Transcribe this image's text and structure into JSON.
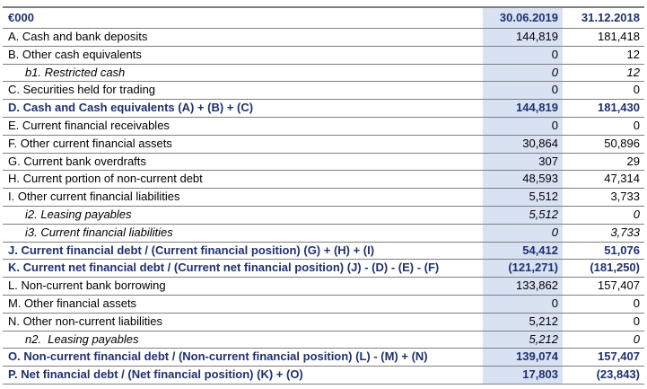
{
  "colors": {
    "header_text": "#1f3070",
    "highlight_column": "#d9e2f3",
    "grid_line": "#7f7f7f"
  },
  "table": {
    "unit_header": "€000",
    "columns": [
      "30.06.2019",
      "31.12.2018"
    ],
    "rows": [
      {
        "label": "A. Cash and bank deposits",
        "v1": "144,819",
        "v2": "181,418",
        "style": "normal"
      },
      {
        "label": "B. Other cash equivalents",
        "v1": "0",
        "v2": "12",
        "style": "normal"
      },
      {
        "label": "b1. Restricted cash",
        "v1": "0",
        "v2": "12",
        "style": "sub"
      },
      {
        "label": "C. Securities held for trading",
        "v1": "0",
        "v2": "0",
        "style": "normal"
      },
      {
        "label": "D. Cash and Cash equivalents (A) + (B) + (C)",
        "v1": "144,819",
        "v2": "181,430",
        "style": "total"
      },
      {
        "label": "E. Current financial receivables",
        "v1": "0",
        "v2": "0",
        "style": "normal"
      },
      {
        "label": "F. Other current financial assets",
        "v1": "30,864",
        "v2": "50,896",
        "style": "normal"
      },
      {
        "label": "G. Current bank overdrafts",
        "v1": "307",
        "v2": "29",
        "style": "normal"
      },
      {
        "label": "H. Current portion of non-current debt",
        "v1": "48,593",
        "v2": "47,314",
        "style": "normal"
      },
      {
        "label": "I. Other current financial liabilities",
        "v1": "5,512",
        "v2": "3,733",
        "style": "normal"
      },
      {
        "label": "i2. Leasing payables",
        "v1": "5,512",
        "v2": "0",
        "style": "sub"
      },
      {
        "label": "i3. Current financial liabilities",
        "v1": "0",
        "v2": "3,733",
        "style": "sub"
      },
      {
        "label": "J. Current financial debt / (Current financial position) (G) + (H) + (I)",
        "v1": "54,412",
        "v2": "51,076",
        "style": "total"
      },
      {
        "label": "K. Current net financial debt / (Current net financial position) (J) - (D) - (E) - (F)",
        "v1": "(121,271)",
        "v2": "(181,250)",
        "style": "total"
      },
      {
        "label": "L. Non-current bank borrowing",
        "v1": "133,862",
        "v2": "157,407",
        "style": "normal"
      },
      {
        "label": "M. Other financial assets",
        "v1": "0",
        "v2": "0",
        "style": "normal"
      },
      {
        "label": "N. Other non-current liabilities",
        "v1": "5,212",
        "v2": "0",
        "style": "normal"
      },
      {
        "label": "n2.  Leasing payables",
        "v1": "5,212",
        "v2": "0",
        "style": "sub"
      },
      {
        "label": "O. Non-current financial debt / (Non-current financial position) (L) - (M) + (N)",
        "v1": "139,074",
        "v2": "157,407",
        "style": "total"
      },
      {
        "label": "P. Net financial debt / (Net financial position) (K) + (O)",
        "v1": "17,803",
        "v2": "(23,843)",
        "style": "total"
      }
    ]
  }
}
